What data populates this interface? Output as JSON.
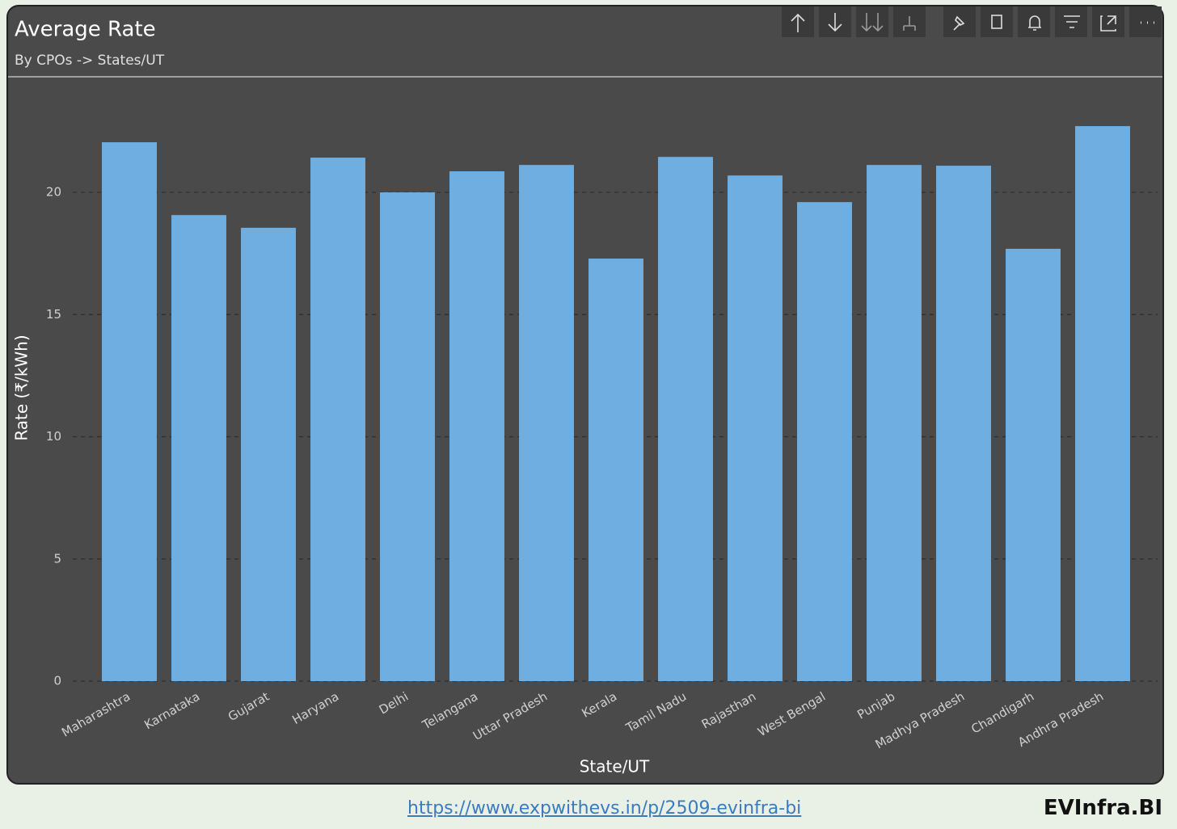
{
  "chart_data": {
    "type": "bar",
    "title": "Average Rate",
    "subtitle": "By CPOs -> States/UT",
    "x_label": "State/UT",
    "y_label": "Rate (₹/kWh)",
    "categories": [
      "Maharashtra",
      "Karnataka",
      "Gujarat",
      "Haryana",
      "Delhi",
      "Telangana",
      "Uttar Pradesh",
      "Kerala",
      "Tamil Nadu",
      "Rajasthan",
      "West Bengal",
      "Punjab",
      "Madhya Pradesh",
      "Chandigarh",
      "Andhra Pradesh"
    ],
    "values": [
      22.05,
      19.07,
      18.55,
      21.42,
      20.0,
      20.86,
      21.12,
      17.29,
      21.45,
      20.69,
      19.6,
      21.12,
      21.09,
      17.69,
      22.71
    ],
    "color": "#6eaee0",
    "ylim": [
      0,
      24.2
    ],
    "yticks": [
      0,
      5,
      10,
      15,
      20
    ],
    "grid": true
  },
  "footer": {
    "link": "https://www.expwithevs.in/p/2509-evinfra-bi",
    "brand": "EVInfra.BI"
  }
}
